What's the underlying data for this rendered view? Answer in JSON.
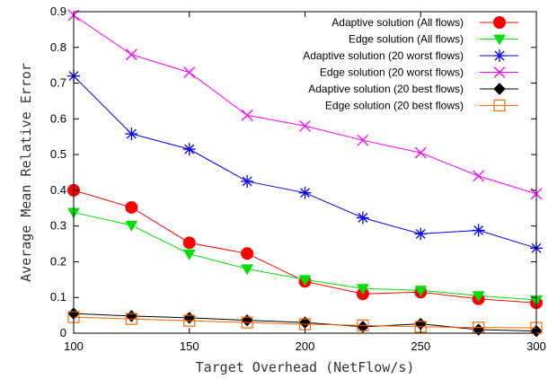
{
  "chart_data": {
    "type": "line",
    "title": "",
    "xlabel": "Target Overhead (NetFlow/s)",
    "ylabel": "Average Mean Relative Error",
    "xlim": [
      100,
      300
    ],
    "ylim": [
      0,
      0.9
    ],
    "xticks": [
      100,
      150,
      200,
      250,
      300
    ],
    "yticks": [
      0,
      0.1,
      0.2,
      0.3,
      0.4,
      0.5,
      0.6,
      0.7,
      0.8,
      0.9
    ],
    "xtick_labels": [
      "100",
      "150",
      "200",
      "250",
      "300"
    ],
    "ytick_labels": [
      "0",
      "0.1",
      "0.2",
      "0.3",
      "0.4",
      "0.5",
      "0.6",
      "0.7",
      "0.8",
      "0.9"
    ],
    "grid": false,
    "legend_position": "top-right",
    "x": [
      100,
      125,
      150,
      175,
      200,
      225,
      250,
      275,
      300
    ],
    "series": [
      {
        "name": "Adaptive solution (All flows)",
        "color": "#ff0000",
        "marker": "circle",
        "values": [
          0.4,
          0.352,
          0.253,
          0.223,
          0.145,
          0.11,
          0.115,
          0.096,
          0.085
        ]
      },
      {
        "name": "Edge solution (All flows)",
        "color": "#00e000",
        "marker": "triangle-down",
        "values": [
          0.338,
          0.302,
          0.222,
          0.18,
          0.15,
          0.125,
          0.12,
          0.105,
          0.093
        ]
      },
      {
        "name": "Adaptive solution (20 worst flows)",
        "color": "#0000ff",
        "marker": "asterisk",
        "values": [
          0.72,
          0.558,
          0.515,
          0.425,
          0.393,
          0.323,
          0.278,
          0.288,
          0.238
        ]
      },
      {
        "name": "Edge solution (20 worst flows)",
        "color": "#ff00ff",
        "marker": "x",
        "values": [
          0.89,
          0.78,
          0.73,
          0.61,
          0.58,
          0.54,
          0.505,
          0.44,
          0.39
        ]
      },
      {
        "name": "Adaptive solution (20 best flows)",
        "color": "#000000",
        "marker": "diamond",
        "values": [
          0.055,
          0.048,
          0.043,
          0.036,
          0.03,
          0.018,
          0.026,
          0.01,
          0.006
        ]
      },
      {
        "name": "Edge solution (20 best flows)",
        "color": "#ff6600",
        "marker": "square",
        "values": [
          0.045,
          0.04,
          0.035,
          0.03,
          0.025,
          0.022,
          0.018,
          0.016,
          0.015
        ]
      }
    ]
  }
}
